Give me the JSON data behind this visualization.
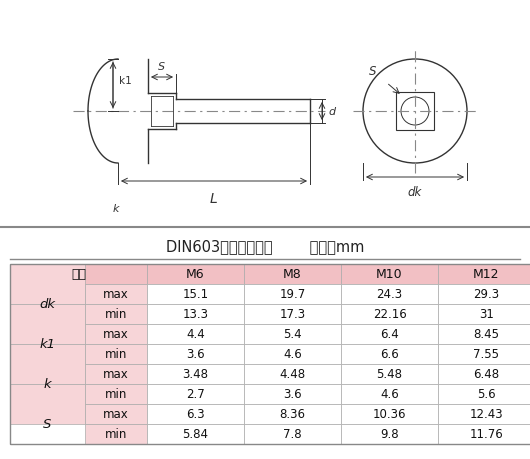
{
  "title_left": "DIN603大头方颈螺栓",
  "title_right": "单位：mm",
  "bg_color": "#ffffff",
  "header_bg": "#f0b8bc",
  "cell_bg_pink": "#f5d0d3",
  "cell_bg_white": "#ffffff",
  "line_color": "#4a4a6a",
  "centerline_color": "#aaaaaa",
  "rows": [
    {
      "param": "dk",
      "sub": "max",
      "values": [
        "15.1",
        "19.7",
        "24.3",
        "29.3"
      ]
    },
    {
      "param": "dk",
      "sub": "min",
      "values": [
        "13.3",
        "17.3",
        "22.16",
        "31"
      ]
    },
    {
      "param": "k1",
      "sub": "max",
      "values": [
        "4.4",
        "5.4",
        "6.4",
        "8.45"
      ]
    },
    {
      "param": "k1",
      "sub": "min",
      "values": [
        "3.6",
        "4.6",
        "6.6",
        "7.55"
      ]
    },
    {
      "param": "k",
      "sub": "max",
      "values": [
        "3.48",
        "4.48",
        "5.48",
        "6.48"
      ]
    },
    {
      "param": "k",
      "sub": "min",
      "values": [
        "2.7",
        "3.6",
        "4.6",
        "5.6"
      ]
    },
    {
      "param": "S",
      "sub": "max",
      "values": [
        "6.3",
        "8.36",
        "10.36",
        "12.43"
      ]
    },
    {
      "param": "S",
      "sub": "min",
      "values": [
        "5.84",
        "7.8",
        "9.8",
        "11.76"
      ]
    }
  ]
}
